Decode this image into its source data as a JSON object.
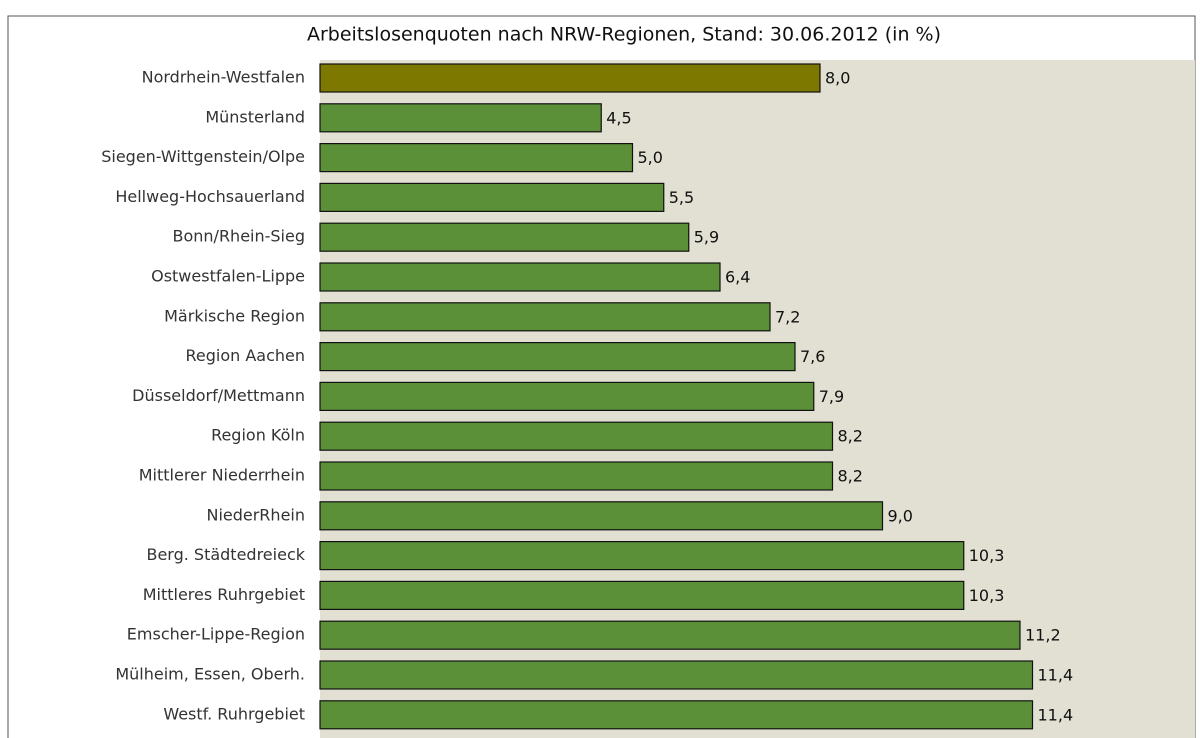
{
  "chart_data": {
    "type": "hbar",
    "title": "Arbeitslosenquoten nach NRW-Regionen, Stand: 30.06.2012 (in %)",
    "categories": [
      "Nordrhein-Westfalen",
      "Münsterland",
      "Siegen-Wittgenstein/Olpe",
      "Hellweg-Hochsauerland",
      "Bonn/Rhein-Sieg",
      "Ostwestfalen-Lippe",
      "Märkische Region",
      "Region Aachen",
      "Düsseldorf/Mettmann",
      "Region Köln",
      "Mittlerer Niederrhein",
      "NiederRhein",
      "Berg. Städtedreieck",
      "Mittleres Ruhrgebiet",
      "Emscher-Lippe-Region",
      "Mülheim, Essen, Oberh.",
      "Westf. Ruhrgebiet"
    ],
    "values": [
      8.0,
      4.5,
      5.0,
      5.5,
      5.9,
      6.4,
      7.2,
      7.6,
      7.9,
      8.2,
      8.2,
      9.0,
      10.3,
      10.3,
      11.2,
      11.4,
      11.4
    ],
    "value_labels": [
      "8,0",
      "4,5",
      "5,0",
      "5,5",
      "5,9",
      "6,4",
      "7,2",
      "7,6",
      "7,9",
      "8,2",
      "8,2",
      "9,0",
      "10,3",
      "10,3",
      "11,2",
      "11,4",
      "11,4"
    ],
    "colors": [
      "#7d7800",
      "#5b9039",
      "#5b9039",
      "#5b9039",
      "#5b9039",
      "#5b9039",
      "#5b9039",
      "#5b9039",
      "#5b9039",
      "#5b9039",
      "#5b9039",
      "#5b9039",
      "#5b9039",
      "#5b9039",
      "#5b9039",
      "#5b9039",
      "#5b9039"
    ],
    "xlim": [
      0,
      14
    ]
  }
}
